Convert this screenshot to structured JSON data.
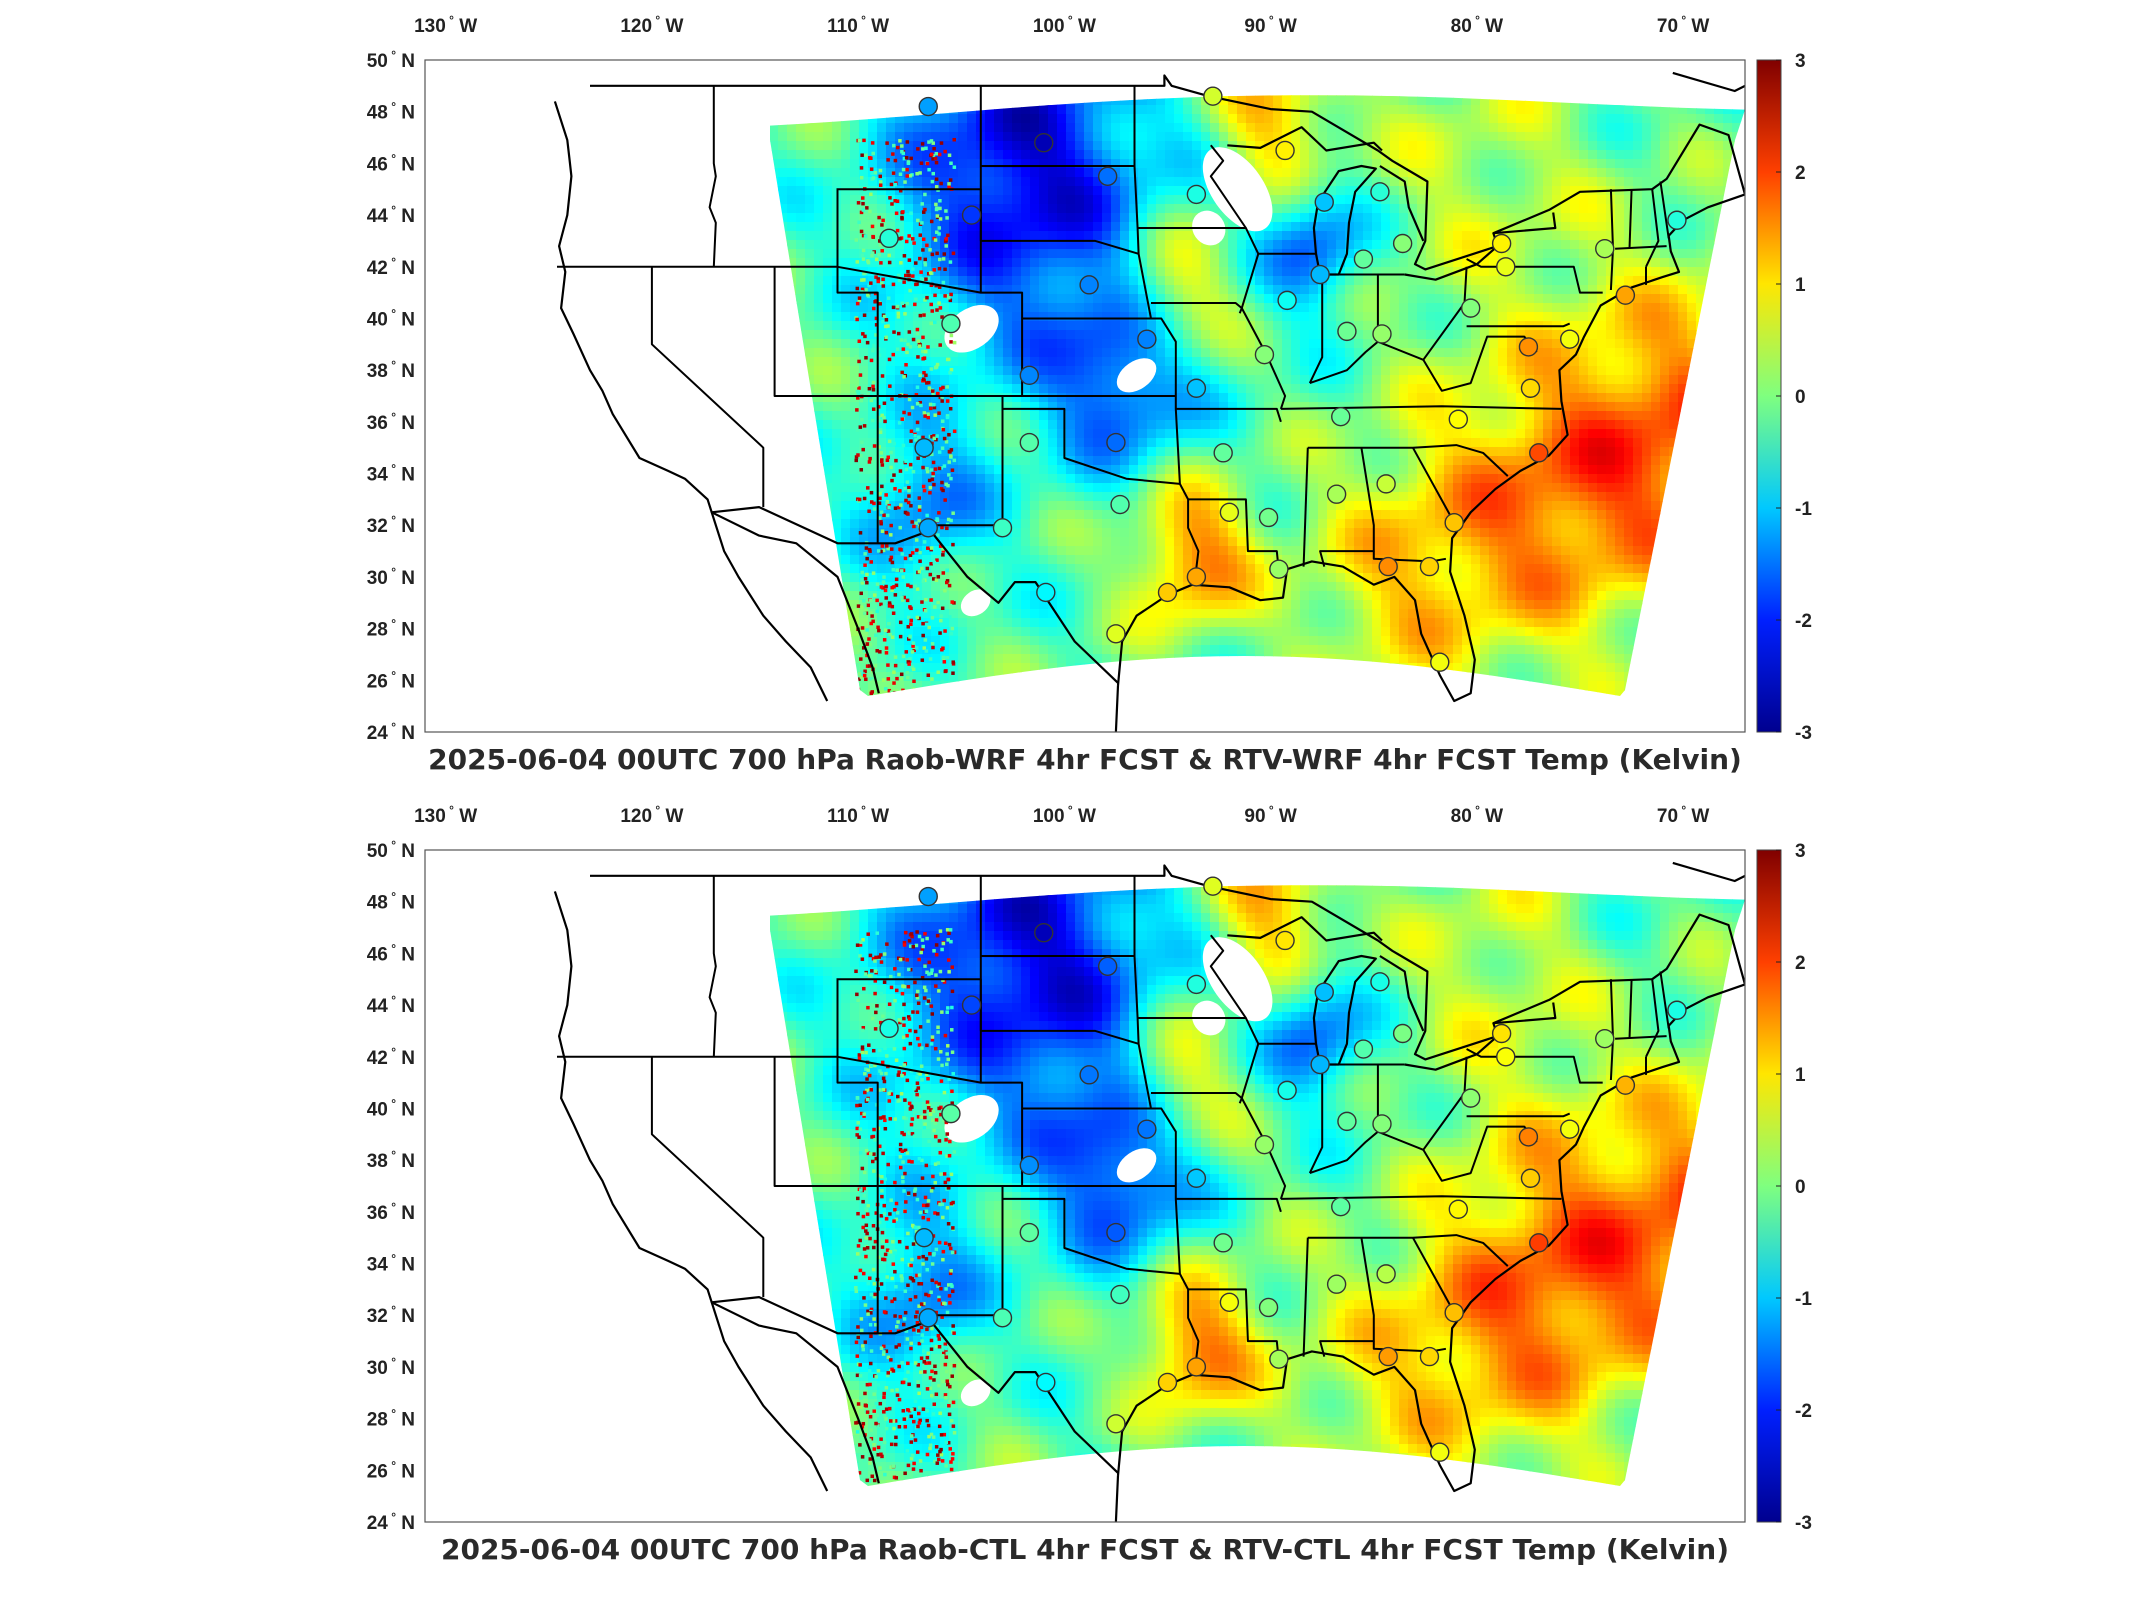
{
  "panels": [
    {
      "title": "2025-06-04 00UTC 700 hPa Raob-WRF 4hr FCST & RTV-WRF 4hr FCST Temp (Kelvin)"
    },
    {
      "title": "2025-06-04 00UTC 700 hPa Raob-CTL 4hr FCST & RTV-CTL 4hr FCST Temp (Kelvin)"
    }
  ],
  "axes": {
    "lon_labels": [
      {
        "deg": "130",
        "hem": "W"
      },
      {
        "deg": "120",
        "hem": "W"
      },
      {
        "deg": "110",
        "hem": "W"
      },
      {
        "deg": "100",
        "hem": "W"
      },
      {
        "deg": "90",
        "hem": "W"
      },
      {
        "deg": "80",
        "hem": "W"
      },
      {
        "deg": "70",
        "hem": "W"
      }
    ],
    "lat_labels": [
      {
        "deg": "50",
        "hem": "N"
      },
      {
        "deg": "48",
        "hem": "N"
      },
      {
        "deg": "46",
        "hem": "N"
      },
      {
        "deg": "44",
        "hem": "N"
      },
      {
        "deg": "42",
        "hem": "N"
      },
      {
        "deg": "40",
        "hem": "N"
      },
      {
        "deg": "38",
        "hem": "N"
      },
      {
        "deg": "36",
        "hem": "N"
      },
      {
        "deg": "34",
        "hem": "N"
      },
      {
        "deg": "32",
        "hem": "N"
      },
      {
        "deg": "30",
        "hem": "N"
      },
      {
        "deg": "28",
        "hem": "N"
      },
      {
        "deg": "26",
        "hem": "N"
      },
      {
        "deg": "24",
        "hem": "N"
      }
    ]
  },
  "colorbar": {
    "ticks": [
      "3",
      "2",
      "1",
      "0",
      "-1",
      "-2",
      "-3"
    ],
    "range": [
      -3,
      3
    ],
    "colors": [
      "#00008f",
      "#0020ff",
      "#00c8ff",
      "#7fff7f",
      "#ffe600",
      "#ff4000",
      "#800000"
    ]
  },
  "colors": {
    "field_base": "#5fe3a8",
    "warm": "#ff9a00",
    "cool": "#1e90ff",
    "boundary": "#000000"
  }
}
